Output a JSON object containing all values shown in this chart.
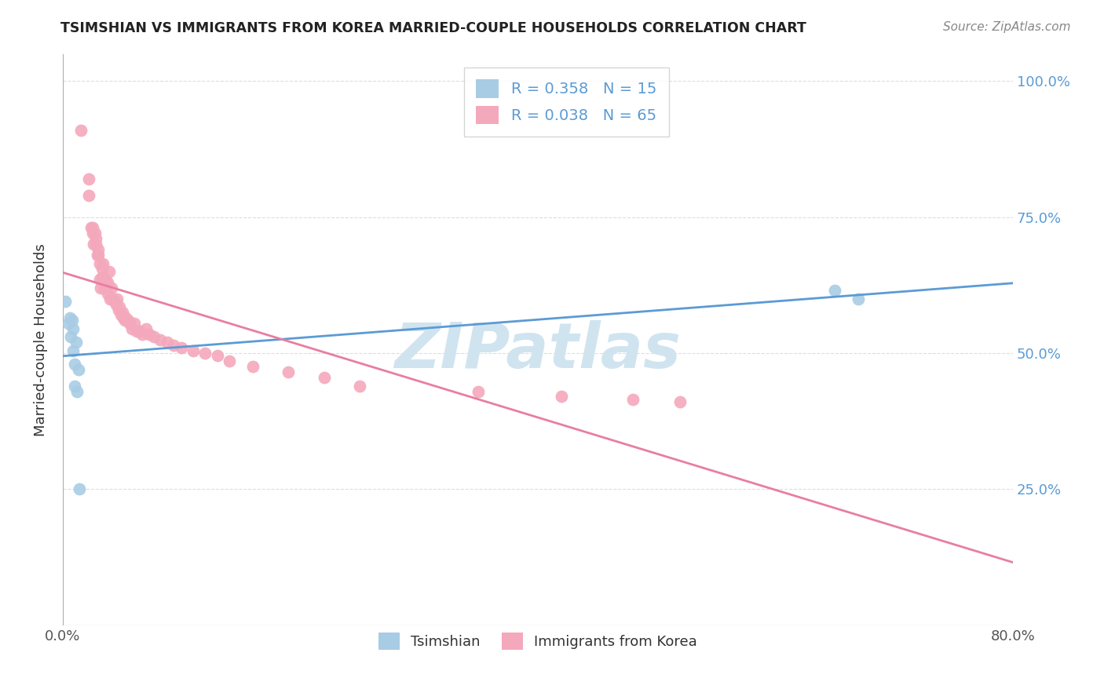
{
  "title": "TSIMSHIAN VS IMMIGRANTS FROM KOREA MARRIED-COUPLE HOUSEHOLDS CORRELATION CHART",
  "source": "Source: ZipAtlas.com",
  "ylabel": "Married-couple Households",
  "legend1_label": "R = 0.358   N = 15",
  "legend2_label": "R = 0.038   N = 65",
  "legend_bottom1": "Tsimshian",
  "legend_bottom2": "Immigrants from Korea",
  "blue_color": "#a8cce4",
  "pink_color": "#f4a8bc",
  "blue_line_color": "#5b9bd5",
  "pink_line_color": "#e87ea1",
  "watermark": "ZIPatlas",
  "watermark_color": "#d0e4f0",
  "tsimshian_x": [
    0.002,
    0.005,
    0.006,
    0.007,
    0.008,
    0.009,
    0.009,
    0.01,
    0.01,
    0.011,
    0.012,
    0.013,
    0.014,
    0.65,
    0.67
  ],
  "tsimshian_y": [
    0.595,
    0.555,
    0.565,
    0.53,
    0.56,
    0.545,
    0.505,
    0.44,
    0.48,
    0.52,
    0.43,
    0.47,
    0.25,
    0.615,
    0.6
  ],
  "korea_x": [
    0.015,
    0.022,
    0.022,
    0.024,
    0.025,
    0.025,
    0.026,
    0.027,
    0.028,
    0.028,
    0.029,
    0.03,
    0.03,
    0.031,
    0.031,
    0.032,
    0.033,
    0.033,
    0.034,
    0.034,
    0.035,
    0.036,
    0.037,
    0.038,
    0.038,
    0.039,
    0.04,
    0.041,
    0.042,
    0.044,
    0.045,
    0.046,
    0.047,
    0.048,
    0.049,
    0.05,
    0.051,
    0.052,
    0.053,
    0.055,
    0.056,
    0.058,
    0.06,
    0.062,
    0.065,
    0.067,
    0.07,
    0.073,
    0.077,
    0.082,
    0.088,
    0.093,
    0.1,
    0.11,
    0.12,
    0.13,
    0.14,
    0.16,
    0.19,
    0.22,
    0.25,
    0.35,
    0.42,
    0.48,
    0.52
  ],
  "korea_y": [
    0.91,
    0.82,
    0.79,
    0.73,
    0.72,
    0.73,
    0.7,
    0.72,
    0.7,
    0.71,
    0.68,
    0.69,
    0.68,
    0.665,
    0.635,
    0.62,
    0.64,
    0.655,
    0.64,
    0.665,
    0.62,
    0.635,
    0.625,
    0.63,
    0.61,
    0.65,
    0.6,
    0.62,
    0.6,
    0.595,
    0.59,
    0.6,
    0.58,
    0.585,
    0.57,
    0.575,
    0.565,
    0.56,
    0.565,
    0.56,
    0.555,
    0.545,
    0.555,
    0.54,
    0.54,
    0.535,
    0.545,
    0.535,
    0.53,
    0.525,
    0.52,
    0.515,
    0.51,
    0.505,
    0.5,
    0.495,
    0.485,
    0.475,
    0.465,
    0.455,
    0.44,
    0.43,
    0.42,
    0.415,
    0.41
  ],
  "xlim": [
    0,
    0.8
  ],
  "ylim": [
    0,
    1.05
  ],
  "ytick_vals": [
    0.0,
    0.25,
    0.5,
    0.75,
    1.0
  ],
  "ytick_labels_right": [
    "",
    "25.0%",
    "50.0%",
    "75.0%",
    "100.0%"
  ],
  "xtick_vals": [
    0.0,
    0.8
  ],
  "xtick_labels": [
    "0.0%",
    "80.0%"
  ],
  "background_color": "#ffffff",
  "grid_color": "#dddddd",
  "right_tick_color": "#5b9bd5"
}
